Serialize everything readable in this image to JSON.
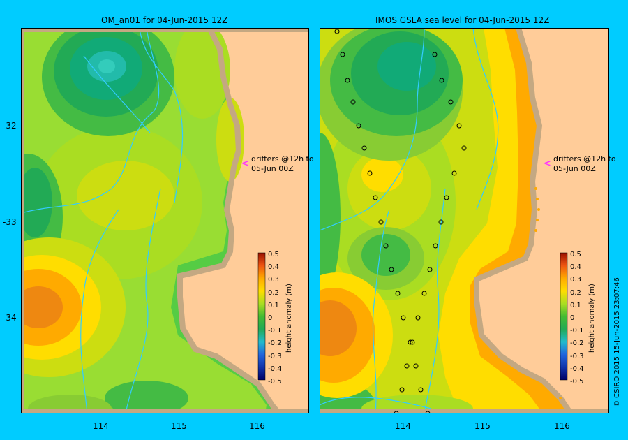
{
  "left_title": "OM_an01  for 04-Jun-2015 12Z",
  "right_title": "IMOS GSLA sea level  for 04-Jun-2015 12Z",
  "drifters_line1": "drifters @12h to",
  "drifters_line2": "05-Jun 00Z",
  "colorbar_label": "height anomaly (m)",
  "colorbar_ticks": [
    "0.5",
    "0.4",
    "0.3",
    "0.2",
    "0.1",
    "0",
    "-0.1",
    "-0.2",
    "-0.3",
    "-0.4",
    "-0.5"
  ],
  "y_ticks": [
    "-32",
    "-33",
    "-34"
  ],
  "x_ticks": [
    "114",
    "115",
    "116"
  ],
  "copyright": "© CSIRO 2015   15-Jun-2015 23:07:46",
  "colors": {
    "background": "#00ccff",
    "land": "#ffcc99",
    "coast": "#c4a882",
    "rivers": "#33ccff",
    "marker": "#ff33ff"
  }
}
